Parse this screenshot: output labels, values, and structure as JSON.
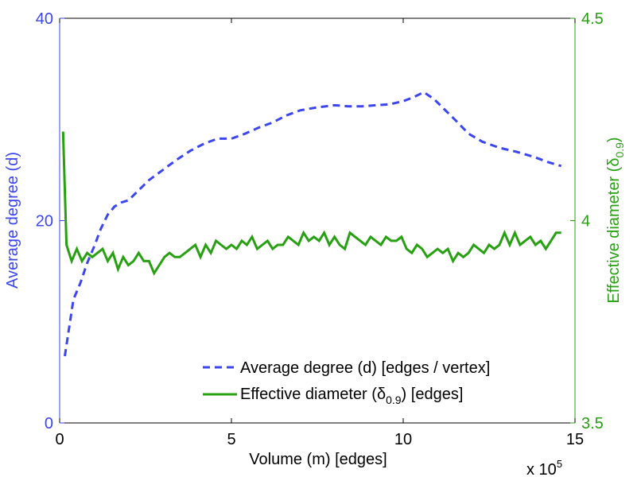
{
  "chart_data": {
    "type": "line",
    "xlabel": "Volume (m) [edges]",
    "x_multiplier_label": "x 10",
    "x_multiplier_exp": "5",
    "xlim": [
      0,
      15
    ],
    "xticks": [
      "0",
      "5",
      "10",
      "15"
    ],
    "left_axis": {
      "label": "Average degree (d)",
      "ylim": [
        0,
        40
      ],
      "ticks": [
        "0",
        "20",
        "40"
      ],
      "color": "#3b45f0"
    },
    "right_axis": {
      "label": "Effective diameter (",
      "label_symbol": "δ",
      "label_sub": "0.9",
      "label_close": ")",
      "ylim": [
        3.5,
        4.5
      ],
      "ticks": [
        "3.5",
        "4",
        "4.5"
      ],
      "color": "#27a012"
    },
    "legend": {
      "position": "bottom-right",
      "series1_label": "Average degree (d) [edges / vertex]",
      "series2_pre": "Effective diameter (",
      "series2_symbol": "δ",
      "series2_sub": "0.9",
      "series2_post": ") [edges]"
    },
    "series": [
      {
        "name": "Average degree (d) [edges / vertex]",
        "axis": "left",
        "style": "dashed",
        "color": "#3b45f0",
        "x": [
          0.15,
          0.4,
          0.6,
          0.8,
          1.0,
          1.2,
          1.4,
          1.6,
          1.8,
          2.0,
          2.3,
          2.6,
          3.0,
          3.4,
          3.8,
          4.2,
          4.6,
          5.0,
          5.4,
          5.8,
          6.2,
          6.6,
          7.0,
          7.5,
          8.0,
          8.4,
          8.8,
          9.2,
          9.6,
          10.0,
          10.3,
          10.6,
          10.9,
          11.2,
          11.5,
          11.9,
          12.3,
          12.8,
          13.3,
          13.8,
          14.2,
          14.6
        ],
        "y": [
          6.6,
          12.2,
          13.8,
          15.8,
          17.4,
          19.2,
          20.6,
          21.4,
          21.8,
          22.0,
          23.0,
          24.0,
          25.0,
          26.0,
          26.9,
          27.6,
          28.1,
          28.1,
          28.6,
          29.2,
          29.7,
          30.4,
          30.9,
          31.2,
          31.4,
          31.3,
          31.3,
          31.4,
          31.5,
          31.8,
          32.2,
          32.7,
          32.0,
          31.0,
          30.0,
          28.6,
          27.8,
          27.2,
          26.8,
          26.3,
          25.8,
          25.4
        ]
      },
      {
        "name": "Effective diameter (δ0.9) [edges]",
        "axis": "right",
        "style": "solid",
        "color": "#27a012",
        "x": [
          0.1,
          0.2,
          0.35,
          0.5,
          0.65,
          0.8,
          0.95,
          1.1,
          1.25,
          1.4,
          1.55,
          1.7,
          1.85,
          2.0,
          2.15,
          2.3,
          2.45,
          2.6,
          2.75,
          2.9,
          3.05,
          3.2,
          3.35,
          3.5,
          3.65,
          3.8,
          3.95,
          4.1,
          4.25,
          4.4,
          4.55,
          4.7,
          4.85,
          5.0,
          5.15,
          5.3,
          5.45,
          5.6,
          5.75,
          5.9,
          6.05,
          6.2,
          6.35,
          6.5,
          6.65,
          6.8,
          6.95,
          7.1,
          7.25,
          7.4,
          7.55,
          7.7,
          7.85,
          8.0,
          8.15,
          8.3,
          8.45,
          8.6,
          8.75,
          8.9,
          9.05,
          9.2,
          9.35,
          9.5,
          9.65,
          9.8,
          9.95,
          10.1,
          10.25,
          10.4,
          10.55,
          10.7,
          10.85,
          11.0,
          11.15,
          11.3,
          11.45,
          11.6,
          11.75,
          11.9,
          12.05,
          12.2,
          12.35,
          12.5,
          12.65,
          12.8,
          12.95,
          13.1,
          13.25,
          13.4,
          13.55,
          13.7,
          13.85,
          14.0,
          14.15,
          14.3,
          14.45,
          14.6
        ],
        "y": [
          4.22,
          3.94,
          3.9,
          3.93,
          3.9,
          3.92,
          3.91,
          3.92,
          3.93,
          3.9,
          3.92,
          3.88,
          3.91,
          3.89,
          3.9,
          3.92,
          3.9,
          3.9,
          3.87,
          3.89,
          3.91,
          3.92,
          3.91,
          3.91,
          3.92,
          3.93,
          3.94,
          3.91,
          3.94,
          3.92,
          3.95,
          3.94,
          3.93,
          3.94,
          3.93,
          3.95,
          3.94,
          3.96,
          3.93,
          3.94,
          3.95,
          3.93,
          3.94,
          3.94,
          3.96,
          3.95,
          3.94,
          3.97,
          3.95,
          3.96,
          3.95,
          3.97,
          3.94,
          3.96,
          3.94,
          3.93,
          3.97,
          3.96,
          3.95,
          3.94,
          3.96,
          3.95,
          3.94,
          3.96,
          3.95,
          3.95,
          3.96,
          3.93,
          3.92,
          3.94,
          3.93,
          3.91,
          3.92,
          3.93,
          3.92,
          3.93,
          3.9,
          3.92,
          3.91,
          3.92,
          3.94,
          3.93,
          3.92,
          3.94,
          3.93,
          3.94,
          3.97,
          3.94,
          3.97,
          3.94,
          3.95,
          3.96,
          3.94,
          3.95,
          3.93,
          3.95,
          3.97,
          3.97
        ]
      }
    ]
  }
}
